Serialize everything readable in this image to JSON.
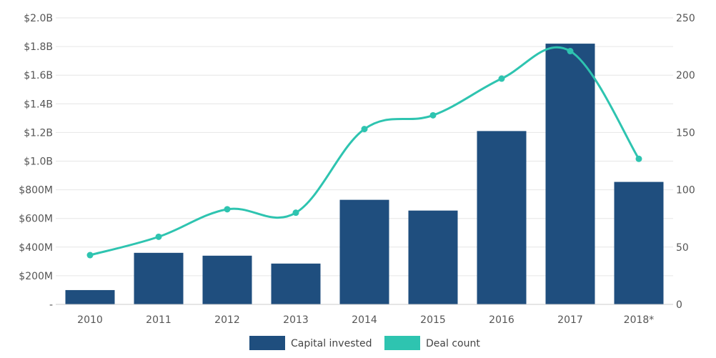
{
  "chart_data": {
    "type": "bar",
    "categories": [
      "2010",
      "2011",
      "2012",
      "2013",
      "2014",
      "2015",
      "2016",
      "2017",
      "2018*"
    ],
    "series": [
      {
        "name": "Capital invested",
        "type": "bar",
        "axis": "left",
        "color": "#1f4e7e",
        "values": [
          100,
          360,
          340,
          285,
          730,
          655,
          1210,
          1820,
          855
        ]
      },
      {
        "name": "Deal count",
        "type": "line",
        "axis": "right",
        "color": "#2ec4b0",
        "values": [
          43,
          59,
          83,
          80,
          153,
          165,
          197,
          221,
          127
        ]
      }
    ],
    "y_left": {
      "lim": [
        0,
        2000
      ],
      "ticks": [
        0,
        200,
        400,
        600,
        800,
        1000,
        1200,
        1400,
        1600,
        1800,
        2000
      ],
      "tick_labels": [
        "-",
        "$200M",
        "$400M",
        "$600M",
        "$800M",
        "$1.0B",
        "$1.2B",
        "$1.4B",
        "$1.6B",
        "$1.8B",
        "$2.0B"
      ]
    },
    "y_right": {
      "lim": [
        0,
        250
      ],
      "ticks": [
        0,
        50,
        100,
        150,
        200,
        250
      ],
      "tick_labels": [
        "0",
        "50",
        "100",
        "150",
        "200",
        "250"
      ]
    },
    "grid": true,
    "legend_position": "bottom-center",
    "title": "",
    "xlabel": "",
    "ylabel": ""
  }
}
